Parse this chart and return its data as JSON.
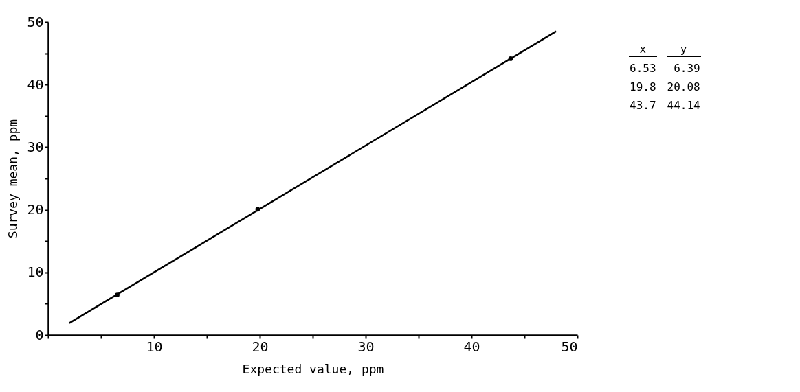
{
  "chart_data": {
    "type": "scatter",
    "xlabel": "Expected value, ppm",
    "ylabel": "Survey mean, ppm",
    "annotations": [
      "x",
      "y",
      "6.53",
      "6.39",
      "19.8",
      "20.08",
      "43.7",
      "44.14"
    ],
    "xlim": [
      0,
      50
    ],
    "ylim": [
      0,
      50
    ],
    "xticks": [
      {
        "value": 0,
        "label": null
      },
      {
        "value": 5,
        "label": null
      },
      10,
      {
        "value": 15,
        "label": null
      },
      20,
      {
        "value": 25,
        "label": null
      },
      30,
      {
        "value": 35,
        "label": null
      },
      40,
      {
        "value": 45,
        "label": null
      },
      50
    ],
    "yticks": [
      0,
      {
        "value": 5,
        "label": null
      },
      10,
      {
        "value": 15,
        "label": null
      },
      20,
      {
        "value": 25,
        "label": null
      },
      30,
      {
        "value": 35,
        "label": null
      },
      40,
      {
        "value": 45,
        "label": null
      },
      50
    ],
    "grid": false,
    "marker": "circle",
    "series": [
      {
        "color": "#000000",
        "x": [
          6.53,
          19.8,
          43.7
        ],
        "values": [
          6.39,
          20.08,
          44.14
        ]
      },
      {
        "type": "line",
        "color": "#000000",
        "marker": "none",
        "line_style": "solid",
        "x": [
          2,
          48
        ],
        "values": [
          1.9,
          48.5
        ]
      }
    ]
  }
}
